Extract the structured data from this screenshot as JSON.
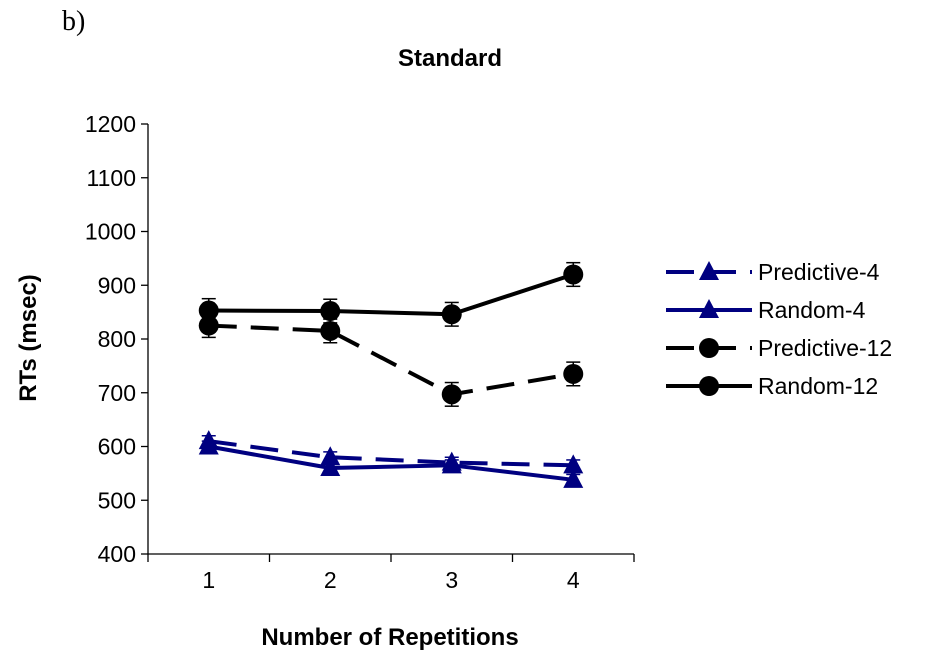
{
  "panel_label": "b)",
  "chart_data": {
    "type": "line",
    "title": "Standard",
    "xlabel": "Number of Repetitions",
    "ylabel": "RTs (msec)",
    "x": [
      1,
      2,
      3,
      4
    ],
    "x_tick_labels": [
      "1",
      "2",
      "3",
      "4"
    ],
    "ylim": [
      400,
      1200
    ],
    "y_ticks": [
      400,
      500,
      600,
      700,
      800,
      900,
      1000,
      1100,
      1200
    ],
    "y_tick_labels": [
      "400",
      "500",
      "600",
      "700",
      "800",
      "900",
      "1000",
      "1100",
      "1200"
    ],
    "grid": false,
    "legend_position": "right",
    "series": [
      {
        "name": "Predictive-4",
        "values": [
          610,
          580,
          570,
          565
        ],
        "error": [
          10,
          10,
          10,
          10
        ],
        "color": "#000080",
        "dash": "dashed",
        "marker": "triangle"
      },
      {
        "name": "Random-4",
        "values": [
          600,
          560,
          565,
          538
        ],
        "error": [
          10,
          10,
          10,
          10
        ],
        "color": "#000080",
        "dash": "solid",
        "marker": "triangle"
      },
      {
        "name": "Predictive-12",
        "values": [
          825,
          815,
          697,
          735
        ],
        "error": [
          22,
          22,
          22,
          22
        ],
        "color": "#000000",
        "dash": "dashed",
        "marker": "circle"
      },
      {
        "name": "Random-12",
        "values": [
          853,
          852,
          846,
          920
        ],
        "error": [
          22,
          22,
          22,
          22
        ],
        "color": "#000000",
        "dash": "solid",
        "marker": "circle"
      }
    ]
  }
}
